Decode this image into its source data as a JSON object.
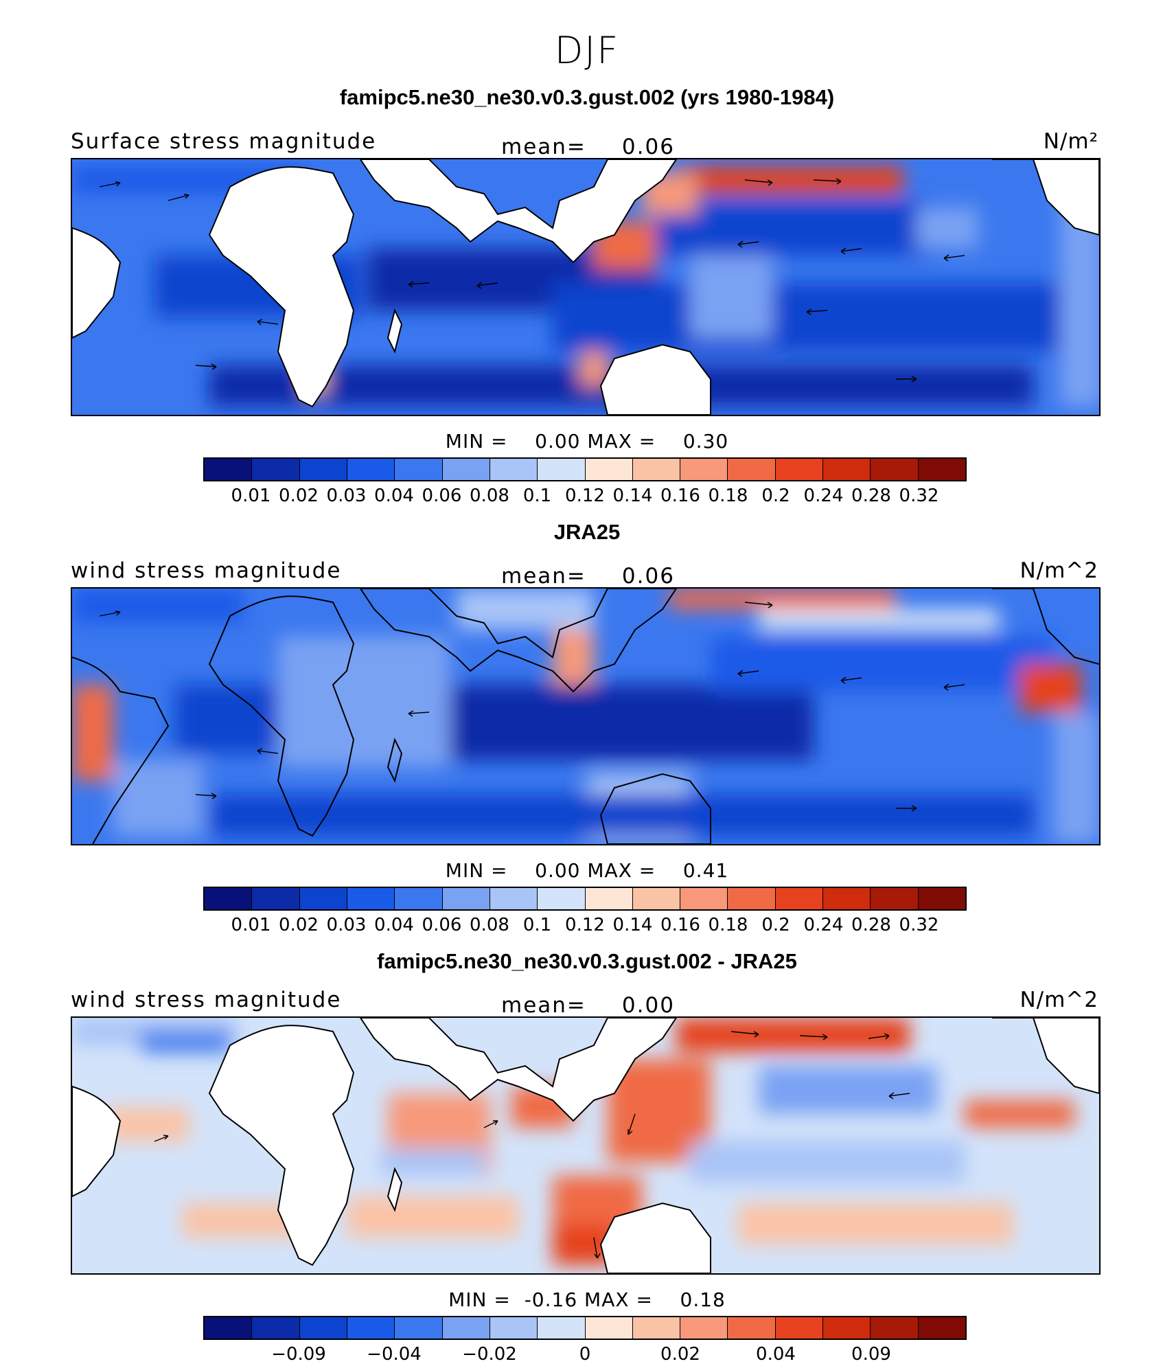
{
  "figure": {
    "season": "DJF",
    "colors": [
      "#08117a",
      "#0b2ba8",
      "#0d44cf",
      "#1a5ae8",
      "#3b78ef",
      "#7aa2f3",
      "#a9c4f7",
      "#d3e3fa",
      "#fde6d6",
      "#fbc3a6",
      "#f7997a",
      "#f06a45",
      "#e6421f",
      "#cf2c0d",
      "#a71a08",
      "#800b04"
    ]
  },
  "panels": [
    {
      "title": "famipc5.ne30_ne30.v0.3.gust.002 (yrs 1980-1984)",
      "left_label": "Surface stress magnitude",
      "mean_label": "mean=",
      "mean_value": "0.06",
      "units": "N/m²",
      "min_label": "MIN =",
      "min_value": "0.00",
      "max_label": "MAX =",
      "max_value": "0.30",
      "colorbar_ticks": [
        "0.01",
        "0.02",
        "0.03",
        "0.04",
        "0.06",
        "0.08",
        "0.1",
        "0.12",
        "0.14",
        "0.16",
        "0.18",
        "0.2",
        "0.24",
        "0.28",
        "0.32"
      ]
    },
    {
      "title": "JRA25",
      "left_label": "wind stress magnitude",
      "mean_label": "mean=",
      "mean_value": "0.06",
      "units": "N/m^2",
      "min_label": "MIN =",
      "min_value": "0.00",
      "max_label": "MAX =",
      "max_value": "0.41",
      "colorbar_ticks": [
        "0.01",
        "0.02",
        "0.03",
        "0.04",
        "0.06",
        "0.08",
        "0.1",
        "0.12",
        "0.14",
        "0.16",
        "0.18",
        "0.2",
        "0.24",
        "0.28",
        "0.32"
      ]
    },
    {
      "title": "famipc5.ne30_ne30.v0.3.gust.002 - JRA25",
      "left_label": "wind stress magnitude",
      "mean_label": "mean=",
      "mean_value": "0.00",
      "units": "N/m^2",
      "min_label": "MIN =",
      "min_value": "-0.16",
      "max_label": "MAX =",
      "max_value": "0.18",
      "colorbar_ticks": [
        "-0.09",
        "-0.04",
        "-0.02",
        "0",
        "0.02",
        "0.04",
        "0.09"
      ]
    }
  ]
}
